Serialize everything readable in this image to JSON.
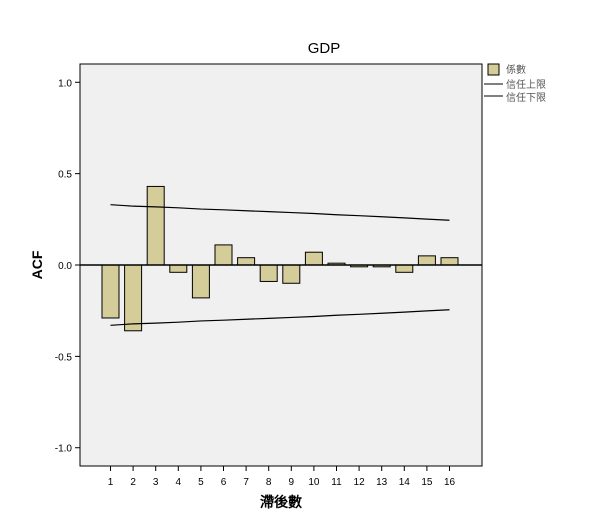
{
  "chart_data": {
    "type": "bar",
    "title": "GDP",
    "xlabel": "滯後數",
    "ylabel": "ACF",
    "categories": [
      "1",
      "2",
      "3",
      "4",
      "5",
      "6",
      "7",
      "8",
      "9",
      "10",
      "11",
      "12",
      "13",
      "14",
      "15",
      "16"
    ],
    "series": [
      {
        "name": "係數",
        "values": [
          -0.29,
          -0.36,
          0.43,
          -0.04,
          -0.18,
          0.11,
          0.04,
          -0.09,
          -0.1,
          0.07,
          0.01,
          -0.01,
          -0.01,
          -0.04,
          0.05,
          0.04
        ]
      }
    ],
    "confidence_limits": [
      {
        "name": "信任上限",
        "values": [
          0.33,
          0.322,
          0.318,
          0.313,
          0.306,
          0.302,
          0.297,
          0.292,
          0.287,
          0.282,
          0.275,
          0.27,
          0.264,
          0.258,
          0.251,
          0.245
        ]
      },
      {
        "name": "信任下限",
        "values": [
          -0.33,
          -0.322,
          -0.318,
          -0.313,
          -0.306,
          -0.302,
          -0.297,
          -0.292,
          -0.287,
          -0.282,
          -0.275,
          -0.27,
          -0.264,
          -0.258,
          -0.251,
          -0.245
        ]
      }
    ],
    "ylim": [
      -1.1,
      1.1
    ],
    "yticks": [
      "-1.0",
      "-0.5",
      "0.0",
      "0.5",
      "1.0"
    ],
    "legend_position": "top-right",
    "grid": false,
    "colors": {
      "bar_fill": "#d4cc99",
      "bar_stroke": "#000000",
      "limit_line": "#000000",
      "plot_background": "#f0f0f0"
    }
  }
}
